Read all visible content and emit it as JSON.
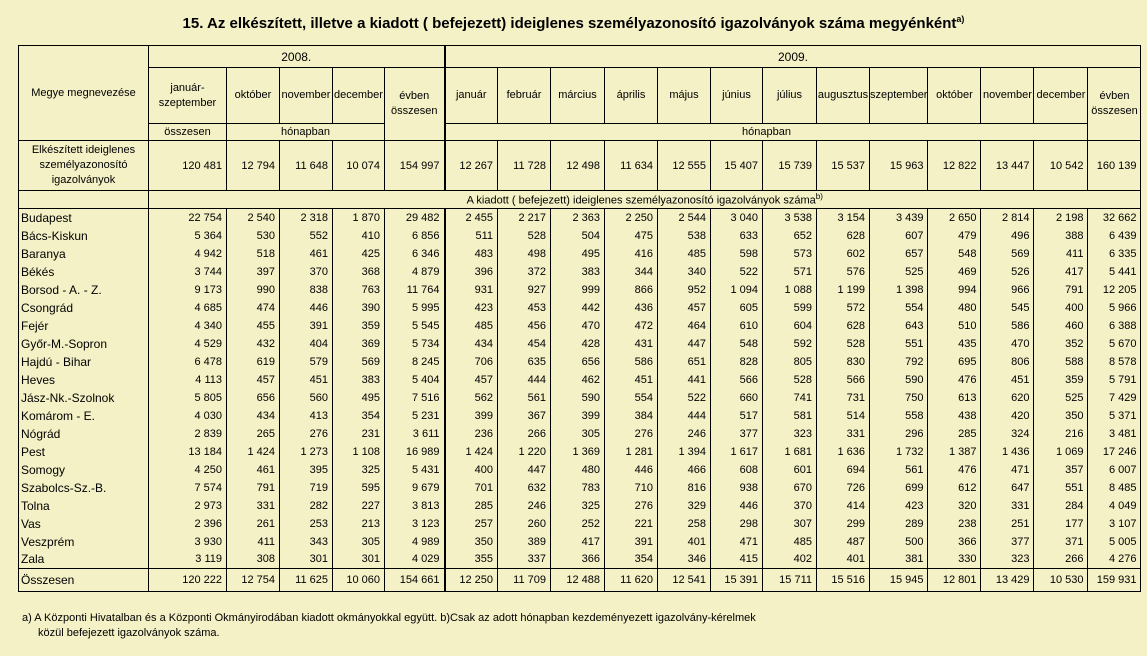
{
  "title": "15. Az elkészített, illetve a kiadott ( befejezett) ideiglenes személyazonosító  igazolványok száma megyénként",
  "title_sup": "a)",
  "header": {
    "megye_label": "Megye megnevezése",
    "year_2008": "2008.",
    "year_2009": "2009.",
    "col_2008": [
      "január-szeptember",
      "október",
      "november",
      "december",
      "évben összesen"
    ],
    "col_2008_sub": "összesen",
    "col_2009": [
      "január",
      "február",
      "március",
      "április",
      "május",
      "június",
      "július",
      "augusztus",
      "szeptember",
      "október",
      "november",
      "december",
      "évben összesen"
    ],
    "unit_label": "hónapban"
  },
  "elkeszitett": {
    "label": "Elkészített ideiglenes személyazonosító igazolványok",
    "values": [
      "120 481",
      "12 794",
      "11 648",
      "10 074",
      "154 997",
      "12 267",
      "11 728",
      "12 498",
      "11 634",
      "12 555",
      "15 407",
      "15 739",
      "15 537",
      "15 963",
      "12 822",
      "13 447",
      "10 542",
      "160 139"
    ]
  },
  "section_label": "A kiadott ( befejezett)  ideiglenes személyazonosító igazolványok száma",
  "section_sup": "b)",
  "rows": [
    {
      "name": "Budapest",
      "v": [
        "22 754",
        "2 540",
        "2 318",
        "1 870",
        "29 482",
        "2 455",
        "2 217",
        "2 363",
        "2 250",
        "2 544",
        "3 040",
        "3 538",
        "3 154",
        "3 439",
        "2 650",
        "2 814",
        "2 198",
        "32 662"
      ]
    },
    {
      "name": "Bács-Kiskun",
      "v": [
        "5 364",
        "530",
        "552",
        "410",
        "6 856",
        "511",
        "528",
        "504",
        "475",
        "538",
        "633",
        "652",
        "628",
        "607",
        "479",
        "496",
        "388",
        "6 439"
      ]
    },
    {
      "name": "Baranya",
      "v": [
        "4 942",
        "518",
        "461",
        "425",
        "6 346",
        "483",
        "498",
        "495",
        "416",
        "485",
        "598",
        "573",
        "602",
        "657",
        "548",
        "569",
        "411",
        "6 335"
      ]
    },
    {
      "name": "Békés",
      "v": [
        "3 744",
        "397",
        "370",
        "368",
        "4 879",
        "396",
        "372",
        "383",
        "344",
        "340",
        "522",
        "571",
        "576",
        "525",
        "469",
        "526",
        "417",
        "5 441"
      ]
    },
    {
      "name": "Borsod - A. - Z.",
      "v": [
        "9 173",
        "990",
        "838",
        "763",
        "11 764",
        "931",
        "927",
        "999",
        "866",
        "952",
        "1 094",
        "1 088",
        "1 199",
        "1 398",
        "994",
        "966",
        "791",
        "12 205"
      ]
    },
    {
      "name": "Csongrád",
      "v": [
        "4 685",
        "474",
        "446",
        "390",
        "5 995",
        "423",
        "453",
        "442",
        "436",
        "457",
        "605",
        "599",
        "572",
        "554",
        "480",
        "545",
        "400",
        "5 966"
      ]
    },
    {
      "name": "Fejér",
      "v": [
        "4 340",
        "455",
        "391",
        "359",
        "5 545",
        "485",
        "456",
        "470",
        "472",
        "464",
        "610",
        "604",
        "628",
        "643",
        "510",
        "586",
        "460",
        "6 388"
      ]
    },
    {
      "name": "Győr-M.-Sopron",
      "v": [
        "4 529",
        "432",
        "404",
        "369",
        "5 734",
        "434",
        "454",
        "428",
        "431",
        "447",
        "548",
        "592",
        "528",
        "551",
        "435",
        "470",
        "352",
        "5 670"
      ]
    },
    {
      "name": "Hajdú - Bihar",
      "v": [
        "6 478",
        "619",
        "579",
        "569",
        "8 245",
        "706",
        "635",
        "656",
        "586",
        "651",
        "828",
        "805",
        "830",
        "792",
        "695",
        "806",
        "588",
        "8 578"
      ]
    },
    {
      "name": "Heves",
      "v": [
        "4 113",
        "457",
        "451",
        "383",
        "5 404",
        "457",
        "444",
        "462",
        "451",
        "441",
        "566",
        "528",
        "566",
        "590",
        "476",
        "451",
        "359",
        "5 791"
      ]
    },
    {
      "name": "Jász-Nk.-Szolnok",
      "v": [
        "5 805",
        "656",
        "560",
        "495",
        "7 516",
        "562",
        "561",
        "590",
        "554",
        "522",
        "660",
        "741",
        "731",
        "750",
        "613",
        "620",
        "525",
        "7 429"
      ]
    },
    {
      "name": "Komárom - E.",
      "v": [
        "4 030",
        "434",
        "413",
        "354",
        "5 231",
        "399",
        "367",
        "399",
        "384",
        "444",
        "517",
        "581",
        "514",
        "558",
        "438",
        "420",
        "350",
        "5 371"
      ]
    },
    {
      "name": "Nógrád",
      "v": [
        "2 839",
        "265",
        "276",
        "231",
        "3 611",
        "236",
        "266",
        "305",
        "276",
        "246",
        "377",
        "323",
        "331",
        "296",
        "285",
        "324",
        "216",
        "3 481"
      ]
    },
    {
      "name": "Pest",
      "v": [
        "13 184",
        "1 424",
        "1 273",
        "1 108",
        "16 989",
        "1 424",
        "1 220",
        "1 369",
        "1 281",
        "1 394",
        "1 617",
        "1 681",
        "1 636",
        "1 732",
        "1 387",
        "1 436",
        "1 069",
        "17 246"
      ]
    },
    {
      "name": "Somogy",
      "v": [
        "4 250",
        "461",
        "395",
        "325",
        "5 431",
        "400",
        "447",
        "480",
        "446",
        "466",
        "608",
        "601",
        "694",
        "561",
        "476",
        "471",
        "357",
        "6 007"
      ]
    },
    {
      "name": "Szabolcs-Sz.-B.",
      "v": [
        "7 574",
        "791",
        "719",
        "595",
        "9 679",
        "701",
        "632",
        "783",
        "710",
        "816",
        "938",
        "670",
        "726",
        "699",
        "612",
        "647",
        "551",
        "8 485"
      ]
    },
    {
      "name": "Tolna",
      "v": [
        "2 973",
        "331",
        "282",
        "227",
        "3 813",
        "285",
        "246",
        "325",
        "276",
        "329",
        "446",
        "370",
        "414",
        "423",
        "320",
        "331",
        "284",
        "4 049"
      ]
    },
    {
      "name": "Vas",
      "v": [
        "2 396",
        "261",
        "253",
        "213",
        "3 123",
        "257",
        "260",
        "252",
        "221",
        "258",
        "298",
        "307",
        "299",
        "289",
        "238",
        "251",
        "177",
        "3 107"
      ]
    },
    {
      "name": "Veszprém",
      "v": [
        "3 930",
        "411",
        "343",
        "305",
        "4 989",
        "350",
        "389",
        "417",
        "391",
        "401",
        "471",
        "485",
        "487",
        "500",
        "366",
        "377",
        "371",
        "5 005"
      ]
    },
    {
      "name": "Zala",
      "v": [
        "3 119",
        "308",
        "301",
        "301",
        "4 029",
        "355",
        "337",
        "366",
        "354",
        "346",
        "415",
        "402",
        "401",
        "381",
        "330",
        "323",
        "266",
        "4 276"
      ]
    }
  ],
  "total": {
    "name": "Összesen",
    "v": [
      "120 222",
      "12 754",
      "11 625",
      "10 060",
      "154 661",
      "12 250",
      "11 709",
      "12 488",
      "11 620",
      "12 541",
      "15 391",
      "15 711",
      "15 516",
      "15 945",
      "12 801",
      "13 429",
      "10 530",
      "159 931"
    ]
  },
  "footnote": {
    "line1": "a) A Központi Hivatalban és a Központi Okmányirodában kiadott okmányokkal együtt. b)Csak az adott hónapban kezdeményezett igazolvány-kérelmek",
    "line2": "közül befejezett igazolványok száma."
  }
}
